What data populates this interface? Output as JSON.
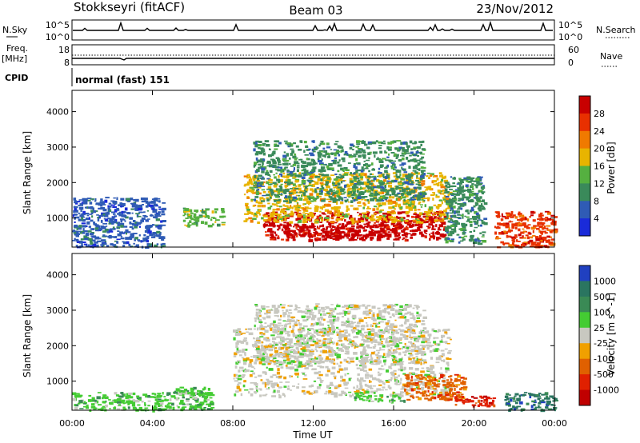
{
  "header": {
    "station": "Stokkseyri (fitACF)",
    "beam": "Beam 03",
    "date": "23/Nov/2012"
  },
  "status_panels": {
    "nsky_label": "N.Sky",
    "nsky_ticks": [
      "10^5",
      "10^0"
    ],
    "nsearch_label": "N.Search",
    "nsearch_ticks": [
      "10^5",
      "10^0"
    ],
    "freq_label_1": "Freq.",
    "freq_label_2": "[MHz]",
    "freq_ticks": [
      "18",
      "8"
    ],
    "nave_label": "Nave",
    "nave_ticks": [
      "60",
      "0"
    ],
    "cpid_label": "CPID",
    "cpid_text": "normal (fast) 151"
  },
  "colors": {
    "power_scale": [
      "#1a2bd9",
      "#2f5bb5",
      "#3a8a5a",
      "#55b040",
      "#e8b400",
      "#f07a00",
      "#e83000",
      "#c80000"
    ],
    "velocity_scale": [
      "#2040c0",
      "#2a7560",
      "#3a8a55",
      "#44cc33",
      "#c8c8c0",
      "#f0a000",
      "#e06000",
      "#e02000",
      "#c00000"
    ],
    "ground_scatter": "#c8c8c0"
  },
  "chart_data": [
    {
      "type": "heatmap",
      "title": "Power",
      "x_ticks": [
        "00:00",
        "04:00",
        "08:00",
        "12:00",
        "16:00",
        "20:00",
        "00:00"
      ],
      "y_ticks": [
        "1000",
        "2000",
        "3000",
        "4000"
      ],
      "ylabel": "Slant Range [km]",
      "xlim_hours": [
        0,
        24
      ],
      "ylim_km": [
        180,
        4600
      ],
      "colorbar_label": "Power [dB]",
      "colorbar_ticks": [
        "28",
        "24",
        "20",
        "16",
        "12",
        "8",
        "4"
      ],
      "regions": [
        {
          "t0": 9.5,
          "t1": 18.5,
          "r0": 400,
          "r1": 1200,
          "level": 7
        },
        {
          "t0": 8.5,
          "t1": 18.8,
          "r0": 900,
          "r1": 2300,
          "level": 4
        },
        {
          "t0": 9.0,
          "t1": 17.5,
          "r0": 1500,
          "r1": 3200,
          "level": 2
        },
        {
          "t0": 10.5,
          "t1": 16.5,
          "r0": 500,
          "r1": 800,
          "level": 7
        },
        {
          "t0": 0.0,
          "t1": 4.5,
          "r0": 200,
          "r1": 1600,
          "level": 1
        },
        {
          "t0": 5.5,
          "t1": 7.5,
          "r0": 800,
          "r1": 1300,
          "level": 3
        },
        {
          "t0": 18.5,
          "t1": 20.5,
          "r0": 300,
          "r1": 2200,
          "level": 2
        },
        {
          "t0": 21.0,
          "t1": 24.0,
          "r0": 200,
          "r1": 1200,
          "level": 6
        }
      ]
    },
    {
      "type": "heatmap",
      "title": "Velocity",
      "x_ticks": [
        "00:00",
        "04:00",
        "08:00",
        "12:00",
        "16:00",
        "20:00",
        "00:00"
      ],
      "y_ticks": [
        "1000",
        "2000",
        "3000",
        "4000"
      ],
      "ylabel": "Slant Range [km]",
      "xlabel": "Time UT",
      "xlim_hours": [
        0,
        24
      ],
      "ylim_km": [
        180,
        4600
      ],
      "colorbar_label": "Velocity [m s^-1]",
      "colorbar_ticks": [
        "1000",
        "500",
        "100",
        "25",
        "-25",
        "-100",
        "-500",
        "-1000"
      ],
      "regions": [
        {
          "t0": 8.0,
          "t1": 18.8,
          "r0": 600,
          "r1": 2500,
          "level": 4
        },
        {
          "t0": 9.0,
          "t1": 17.5,
          "r0": 1500,
          "r1": 3200,
          "level": 4
        },
        {
          "t0": 16.5,
          "t1": 19.5,
          "r0": 500,
          "r1": 1200,
          "level": 6
        },
        {
          "t0": 14.0,
          "t1": 16.5,
          "r0": 450,
          "r1": 700,
          "level": 3
        },
        {
          "t0": 0.0,
          "t1": 7.0,
          "r0": 200,
          "r1": 700,
          "level": 3
        },
        {
          "t0": 5.0,
          "t1": 6.8,
          "r0": 650,
          "r1": 850,
          "level": 3
        },
        {
          "t0": 21.5,
          "t1": 24.0,
          "r0": 200,
          "r1": 700,
          "level": 1
        },
        {
          "t0": 19.0,
          "t1": 21.0,
          "r0": 300,
          "r1": 600,
          "level": 7
        }
      ]
    }
  ]
}
